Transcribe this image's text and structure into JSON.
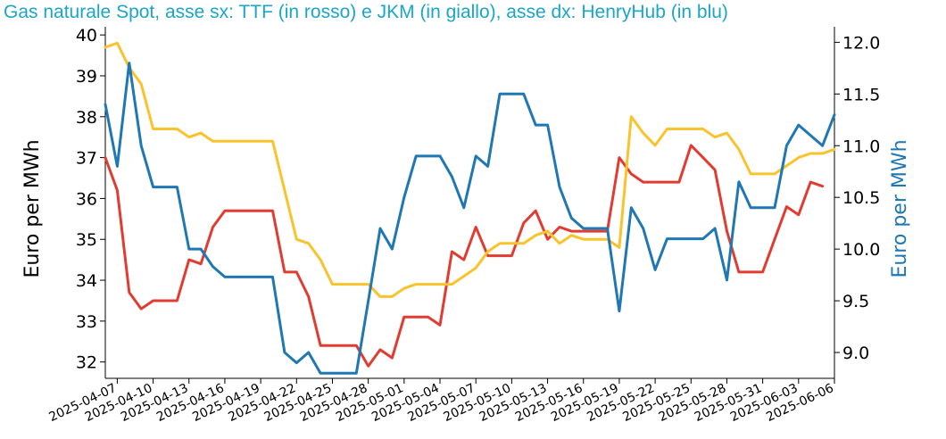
{
  "chart_data": {
    "type": "line",
    "title": "Gas naturale Spot, asse sx: TTF (in rosso) e JKM (in giallo), asse dx: HenryHub (in blu)",
    "title_color": "#1aa6c8",
    "ylabel_left": "Euro per MWh",
    "ylabel_right": "Euro per MWh",
    "ylabel_right_color": "#1f77b4",
    "ylim_left": [
      31.6,
      40.2
    ],
    "ylim_right": [
      8.75,
      12.15
    ],
    "yticks_left": [
      "32",
      "33",
      "34",
      "35",
      "36",
      "37",
      "38",
      "39",
      "40"
    ],
    "yticks_right": [
      "9.0",
      "9.5",
      "10.0",
      "10.5",
      "11.0",
      "11.5",
      "12.0"
    ],
    "xlim": [
      "2025-04-06",
      "2025-06-06"
    ],
    "xticks": [
      "2025-04-07",
      "2025-04-10",
      "2025-04-13",
      "2025-04-16",
      "2025-04-19",
      "2025-04-22",
      "2025-04-25",
      "2025-04-28",
      "2025-05-01",
      "2025-05-04",
      "2025-05-07",
      "2025-05-10",
      "2025-05-13",
      "2025-05-16",
      "2025-05-19",
      "2025-05-22",
      "2025-05-25",
      "2025-05-28",
      "2025-05-31",
      "2025-06-03",
      "2025-06-06"
    ],
    "grid": false,
    "legend": false,
    "series": [
      {
        "name": "TTF",
        "axis": "left",
        "color": "#e03c31",
        "points": [
          [
            "2025-04-06",
            37.0
          ],
          [
            "2025-04-07",
            36.2
          ],
          [
            "2025-04-08",
            33.7
          ],
          [
            "2025-04-09",
            33.3
          ],
          [
            "2025-04-10",
            33.5
          ],
          [
            "2025-04-11",
            33.5
          ],
          [
            "2025-04-12",
            33.5
          ],
          [
            "2025-04-13",
            34.5
          ],
          [
            "2025-04-14",
            34.4
          ],
          [
            "2025-04-15",
            35.3
          ],
          [
            "2025-04-16",
            35.7
          ],
          [
            "2025-04-17",
            35.7
          ],
          [
            "2025-04-18",
            35.7
          ],
          [
            "2025-04-19",
            35.7
          ],
          [
            "2025-04-20",
            35.7
          ],
          [
            "2025-04-21",
            34.2
          ],
          [
            "2025-04-22",
            34.2
          ],
          [
            "2025-04-23",
            33.6
          ],
          [
            "2025-04-24",
            32.4
          ],
          [
            "2025-04-25",
            32.4
          ],
          [
            "2025-04-26",
            32.4
          ],
          [
            "2025-04-27",
            32.4
          ],
          [
            "2025-04-28",
            31.9
          ],
          [
            "2025-04-29",
            32.3
          ],
          [
            "2025-04-30",
            32.1
          ],
          [
            "2025-05-01",
            33.1
          ],
          [
            "2025-05-02",
            33.1
          ],
          [
            "2025-05-03",
            33.1
          ],
          [
            "2025-05-04",
            32.9
          ],
          [
            "2025-05-05",
            34.7
          ],
          [
            "2025-05-06",
            34.5
          ],
          [
            "2025-05-07",
            35.3
          ],
          [
            "2025-05-08",
            34.6
          ],
          [
            "2025-05-09",
            34.6
          ],
          [
            "2025-05-10",
            34.6
          ],
          [
            "2025-05-11",
            35.4
          ],
          [
            "2025-05-12",
            35.7
          ],
          [
            "2025-05-13",
            35.0
          ],
          [
            "2025-05-14",
            35.3
          ],
          [
            "2025-05-15",
            35.2
          ],
          [
            "2025-05-16",
            35.2
          ],
          [
            "2025-05-17",
            35.2
          ],
          [
            "2025-05-18",
            35.2
          ],
          [
            "2025-05-19",
            37.0
          ],
          [
            "2025-05-20",
            36.6
          ],
          [
            "2025-05-21",
            36.4
          ],
          [
            "2025-05-22",
            36.4
          ],
          [
            "2025-05-23",
            36.4
          ],
          [
            "2025-05-24",
            36.4
          ],
          [
            "2025-05-25",
            37.3
          ],
          [
            "2025-05-26",
            37.0
          ],
          [
            "2025-05-27",
            36.7
          ],
          [
            "2025-05-28",
            35.2
          ],
          [
            "2025-05-29",
            34.2
          ],
          [
            "2025-05-30",
            34.2
          ],
          [
            "2025-05-31",
            34.2
          ],
          [
            "2025-06-01",
            35.0
          ],
          [
            "2025-06-02",
            35.8
          ],
          [
            "2025-06-03",
            35.6
          ],
          [
            "2025-06-04",
            36.4
          ],
          [
            "2025-06-05",
            36.3
          ]
        ]
      },
      {
        "name": "JKM",
        "axis": "left",
        "color": "#fac22b",
        "points": [
          [
            "2025-04-06",
            39.7
          ],
          [
            "2025-04-07",
            39.8
          ],
          [
            "2025-04-08",
            39.2
          ],
          [
            "2025-04-09",
            38.8
          ],
          [
            "2025-04-10",
            37.7
          ],
          [
            "2025-04-11",
            37.7
          ],
          [
            "2025-04-12",
            37.7
          ],
          [
            "2025-04-13",
            37.5
          ],
          [
            "2025-04-14",
            37.6
          ],
          [
            "2025-04-15",
            37.4
          ],
          [
            "2025-04-16",
            37.4
          ],
          [
            "2025-04-17",
            37.4
          ],
          [
            "2025-04-18",
            37.4
          ],
          [
            "2025-04-19",
            37.4
          ],
          [
            "2025-04-20",
            37.4
          ],
          [
            "2025-04-21",
            36.2
          ],
          [
            "2025-04-22",
            35.0
          ],
          [
            "2025-04-23",
            34.9
          ],
          [
            "2025-04-24",
            34.5
          ],
          [
            "2025-04-25",
            33.9
          ],
          [
            "2025-04-26",
            33.9
          ],
          [
            "2025-04-27",
            33.9
          ],
          [
            "2025-04-28",
            33.9
          ],
          [
            "2025-04-29",
            33.6
          ],
          [
            "2025-04-30",
            33.6
          ],
          [
            "2025-05-01",
            33.8
          ],
          [
            "2025-05-02",
            33.9
          ],
          [
            "2025-05-03",
            33.9
          ],
          [
            "2025-05-04",
            33.9
          ],
          [
            "2025-05-05",
            33.9
          ],
          [
            "2025-05-06",
            34.1
          ],
          [
            "2025-05-07",
            34.3
          ],
          [
            "2025-05-08",
            34.7
          ],
          [
            "2025-05-09",
            34.9
          ],
          [
            "2025-05-10",
            34.9
          ],
          [
            "2025-05-11",
            34.9
          ],
          [
            "2025-05-12",
            35.1
          ],
          [
            "2025-05-13",
            35.2
          ],
          [
            "2025-05-14",
            34.9
          ],
          [
            "2025-05-15",
            35.1
          ],
          [
            "2025-05-16",
            35.0
          ],
          [
            "2025-05-17",
            35.0
          ],
          [
            "2025-05-18",
            35.0
          ],
          [
            "2025-05-19",
            34.8
          ],
          [
            "2025-05-20",
            38.0
          ],
          [
            "2025-05-21",
            37.6
          ],
          [
            "2025-05-22",
            37.3
          ],
          [
            "2025-05-23",
            37.7
          ],
          [
            "2025-05-24",
            37.7
          ],
          [
            "2025-05-25",
            37.7
          ],
          [
            "2025-05-26",
            37.7
          ],
          [
            "2025-05-27",
            37.5
          ],
          [
            "2025-05-28",
            37.6
          ],
          [
            "2025-05-29",
            37.2
          ],
          [
            "2025-05-30",
            36.6
          ],
          [
            "2025-05-31",
            36.6
          ],
          [
            "2025-06-01",
            36.6
          ],
          [
            "2025-06-02",
            36.8
          ],
          [
            "2025-06-03",
            37.0
          ],
          [
            "2025-06-04",
            37.1
          ],
          [
            "2025-06-05",
            37.1
          ],
          [
            "2025-06-06",
            37.2
          ]
        ]
      },
      {
        "name": "HenryHub",
        "axis": "right",
        "color": "#1f77b4",
        "points": [
          [
            "2025-04-06",
            11.4
          ],
          [
            "2025-04-07",
            10.8
          ],
          [
            "2025-04-08",
            11.8
          ],
          [
            "2025-04-09",
            11.0
          ],
          [
            "2025-04-10",
            10.6
          ],
          [
            "2025-04-11",
            10.6
          ],
          [
            "2025-04-12",
            10.6
          ],
          [
            "2025-04-13",
            10.0
          ],
          [
            "2025-04-14",
            10.0
          ],
          [
            "2025-04-15",
            9.83
          ],
          [
            "2025-04-16",
            9.73
          ],
          [
            "2025-04-17",
            9.73
          ],
          [
            "2025-04-18",
            9.73
          ],
          [
            "2025-04-19",
            9.73
          ],
          [
            "2025-04-20",
            9.73
          ],
          [
            "2025-04-21",
            9.0
          ],
          [
            "2025-04-22",
            8.9
          ],
          [
            "2025-04-23",
            9.0
          ],
          [
            "2025-04-24",
            8.8
          ],
          [
            "2025-04-25",
            8.8
          ],
          [
            "2025-04-26",
            8.8
          ],
          [
            "2025-04-27",
            8.8
          ],
          [
            "2025-04-28",
            9.5
          ],
          [
            "2025-04-29",
            10.2
          ],
          [
            "2025-04-30",
            10.0
          ],
          [
            "2025-05-01",
            10.5
          ],
          [
            "2025-05-02",
            10.9
          ],
          [
            "2025-05-03",
            10.9
          ],
          [
            "2025-05-04",
            10.9
          ],
          [
            "2025-05-05",
            10.7
          ],
          [
            "2025-05-06",
            10.4
          ],
          [
            "2025-05-07",
            10.9
          ],
          [
            "2025-05-08",
            10.8
          ],
          [
            "2025-05-09",
            11.5
          ],
          [
            "2025-05-10",
            11.5
          ],
          [
            "2025-05-11",
            11.5
          ],
          [
            "2025-05-12",
            11.2
          ],
          [
            "2025-05-13",
            11.2
          ],
          [
            "2025-05-14",
            10.6
          ],
          [
            "2025-05-15",
            10.3
          ],
          [
            "2025-05-16",
            10.2
          ],
          [
            "2025-05-17",
            10.2
          ],
          [
            "2025-05-18",
            10.2
          ],
          [
            "2025-05-19",
            9.4
          ],
          [
            "2025-05-20",
            10.4
          ],
          [
            "2025-05-21",
            10.2
          ],
          [
            "2025-05-22",
            9.8
          ],
          [
            "2025-05-23",
            10.1
          ],
          [
            "2025-05-24",
            10.1
          ],
          [
            "2025-05-25",
            10.1
          ],
          [
            "2025-05-26",
            10.1
          ],
          [
            "2025-05-27",
            10.2
          ],
          [
            "2025-05-28",
            9.7
          ],
          [
            "2025-05-29",
            10.65
          ],
          [
            "2025-05-30",
            10.4
          ],
          [
            "2025-05-31",
            10.4
          ],
          [
            "2025-06-01",
            10.4
          ],
          [
            "2025-06-02",
            11.0
          ],
          [
            "2025-06-03",
            11.2
          ],
          [
            "2025-06-04",
            11.1
          ],
          [
            "2025-06-05",
            11.0
          ],
          [
            "2025-06-06",
            11.3
          ]
        ]
      }
    ]
  }
}
